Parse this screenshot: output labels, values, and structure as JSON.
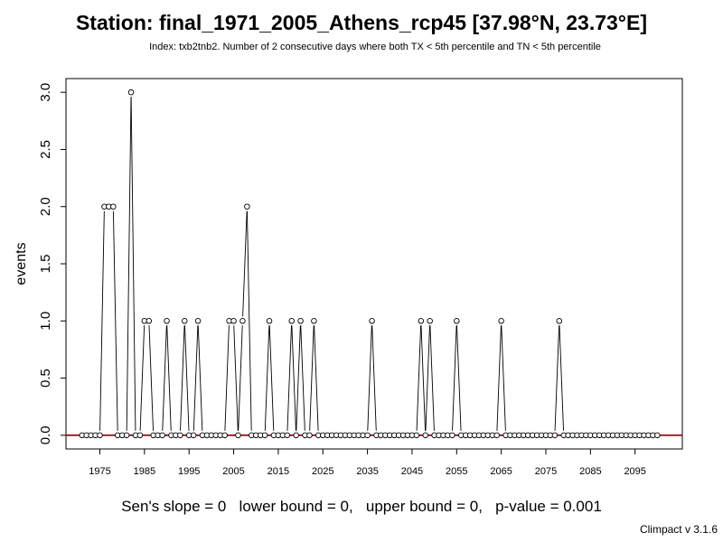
{
  "chart_data": {
    "type": "line",
    "title": "Station: final_1971_2005_Athens_rcp45 [37.98°N, 23.73°E]",
    "subtitle": "Index: txb2tnb2. Number of 2 consecutive days where both TX < 5th percentile and TN < 5th percentile",
    "xlabel": "",
    "ylabel": "events",
    "x_ticks": [
      1975,
      1985,
      1995,
      2005,
      2015,
      2025,
      2035,
      2045,
      2055,
      2065,
      2075,
      2085,
      2095
    ],
    "y_ticks": [
      "0.0",
      "0.5",
      "1.0",
      "1.5",
      "2.0",
      "2.5",
      "3.0"
    ],
    "xlim": [
      1967.4,
      2105.6
    ],
    "ylim": [
      -0.12,
      3.12
    ],
    "x_start": 1971,
    "x_end": 2100,
    "values": [
      0,
      0,
      0,
      0,
      0,
      2,
      2,
      2,
      0,
      0,
      0,
      3,
      0,
      0,
      1,
      1,
      0,
      0,
      0,
      1,
      0,
      0,
      0,
      1,
      0,
      0,
      1,
      0,
      0,
      0,
      0,
      0,
      0,
      1,
      1,
      0,
      1,
      2,
      0,
      0,
      0,
      0,
      1,
      0,
      0,
      0,
      0,
      1,
      0,
      1,
      0,
      0,
      1,
      0,
      0,
      0,
      0,
      0,
      0,
      0,
      0,
      0,
      0,
      0,
      0,
      1,
      0,
      0,
      0,
      0,
      0,
      0,
      0,
      0,
      0,
      0,
      1,
      0,
      1,
      0,
      0,
      0,
      0,
      0,
      1,
      0,
      0,
      0,
      0,
      0,
      0,
      0,
      0,
      0,
      1,
      0,
      0,
      0,
      0,
      0,
      0,
      0,
      0,
      0,
      0,
      0,
      0,
      1,
      0,
      0,
      0,
      0,
      0,
      0,
      0,
      0,
      0,
      0,
      0,
      0,
      0,
      0,
      0,
      0,
      0,
      0,
      0,
      0,
      0,
      0
    ],
    "trend_line": {
      "value": 0,
      "color": "#8b0000"
    },
    "grid": false,
    "legend": "none",
    "series_color": "#000000"
  },
  "footer": "Sen's slope = 0   lower bound = 0,   upper bound = 0,   p-value = 0.001",
  "credit": "Climpact v 3.1.6"
}
